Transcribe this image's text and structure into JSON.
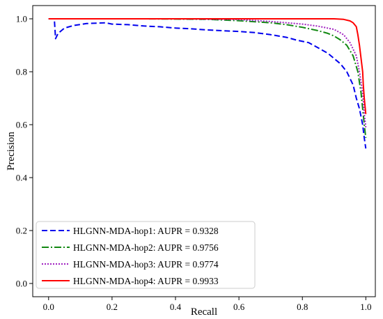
{
  "chart_data": {
    "type": "line",
    "title": "",
    "xlabel": "Recall",
    "ylabel": "Precision",
    "xlim": [
      -0.05,
      1.03
    ],
    "ylim": [
      -0.05,
      1.05
    ],
    "x_ticks": [
      "0.0",
      "0.2",
      "0.4",
      "0.6",
      "0.8",
      "1.0"
    ],
    "y_ticks": [
      "0.0",
      "0.2",
      "0.4",
      "0.6",
      "0.8",
      "1.0"
    ],
    "grid": false,
    "legend_position": "lower-left",
    "series": [
      {
        "name": "HLGNN-MDA-hop1: AUPR = 0.9328",
        "color": "#0000ee",
        "style": "dashed",
        "points": [
          [
            0.0,
            1.0
          ],
          [
            0.018,
            1.0
          ],
          [
            0.022,
            0.925
          ],
          [
            0.03,
            0.945
          ],
          [
            0.05,
            0.965
          ],
          [
            0.08,
            0.975
          ],
          [
            0.12,
            0.982
          ],
          [
            0.18,
            0.985
          ],
          [
            0.2,
            0.98
          ],
          [
            0.25,
            0.978
          ],
          [
            0.3,
            0.973
          ],
          [
            0.35,
            0.97
          ],
          [
            0.4,
            0.965
          ],
          [
            0.45,
            0.962
          ],
          [
            0.5,
            0.958
          ],
          [
            0.55,
            0.955
          ],
          [
            0.6,
            0.952
          ],
          [
            0.65,
            0.948
          ],
          [
            0.7,
            0.94
          ],
          [
            0.75,
            0.93
          ],
          [
            0.78,
            0.92
          ],
          [
            0.82,
            0.91
          ],
          [
            0.85,
            0.89
          ],
          [
            0.88,
            0.87
          ],
          [
            0.9,
            0.85
          ],
          [
            0.92,
            0.83
          ],
          [
            0.94,
            0.8
          ],
          [
            0.96,
            0.75
          ],
          [
            0.97,
            0.7
          ],
          [
            0.98,
            0.66
          ],
          [
            0.99,
            0.6
          ],
          [
            0.995,
            0.55
          ],
          [
            1.0,
            0.51
          ]
        ]
      },
      {
        "name": "HLGNN-MDA-hop2: AUPR = 0.9756",
        "color": "#118811",
        "style": "dashdot",
        "points": [
          [
            0.0,
            1.0
          ],
          [
            0.3,
            1.0
          ],
          [
            0.5,
            0.998
          ],
          [
            0.6,
            0.993
          ],
          [
            0.7,
            0.985
          ],
          [
            0.75,
            0.978
          ],
          [
            0.8,
            0.968
          ],
          [
            0.85,
            0.955
          ],
          [
            0.88,
            0.945
          ],
          [
            0.9,
            0.935
          ],
          [
            0.92,
            0.92
          ],
          [
            0.94,
            0.9
          ],
          [
            0.96,
            0.86
          ],
          [
            0.975,
            0.8
          ],
          [
            0.985,
            0.72
          ],
          [
            0.99,
            0.66
          ],
          [
            0.995,
            0.6
          ],
          [
            1.0,
            0.55
          ]
        ]
      },
      {
        "name": "HLGNN-MDA-hop3: AUPR = 0.9774",
        "color": "#a020c0",
        "style": "dotted",
        "points": [
          [
            0.0,
            1.0
          ],
          [
            0.4,
            1.0
          ],
          [
            0.6,
            0.997
          ],
          [
            0.7,
            0.99
          ],
          [
            0.8,
            0.98
          ],
          [
            0.85,
            0.972
          ],
          [
            0.9,
            0.96
          ],
          [
            0.93,
            0.94
          ],
          [
            0.95,
            0.91
          ],
          [
            0.97,
            0.86
          ],
          [
            0.98,
            0.8
          ],
          [
            0.99,
            0.72
          ],
          [
            0.995,
            0.64
          ],
          [
            1.0,
            0.59
          ]
        ]
      },
      {
        "name": "HLGNN-MDA-hop4: AUPR = 0.9933",
        "color": "#ff0000",
        "style": "solid",
        "points": [
          [
            0.0,
            1.0
          ],
          [
            0.9,
            1.0
          ],
          [
            0.93,
            0.998
          ],
          [
            0.95,
            0.992
          ],
          [
            0.96,
            0.985
          ],
          [
            0.97,
            0.97
          ],
          [
            0.975,
            0.94
          ],
          [
            0.98,
            0.9
          ],
          [
            0.985,
            0.85
          ],
          [
            0.99,
            0.8
          ],
          [
            0.992,
            0.75
          ],
          [
            0.995,
            0.7
          ],
          [
            1.0,
            0.64
          ]
        ]
      }
    ]
  }
}
